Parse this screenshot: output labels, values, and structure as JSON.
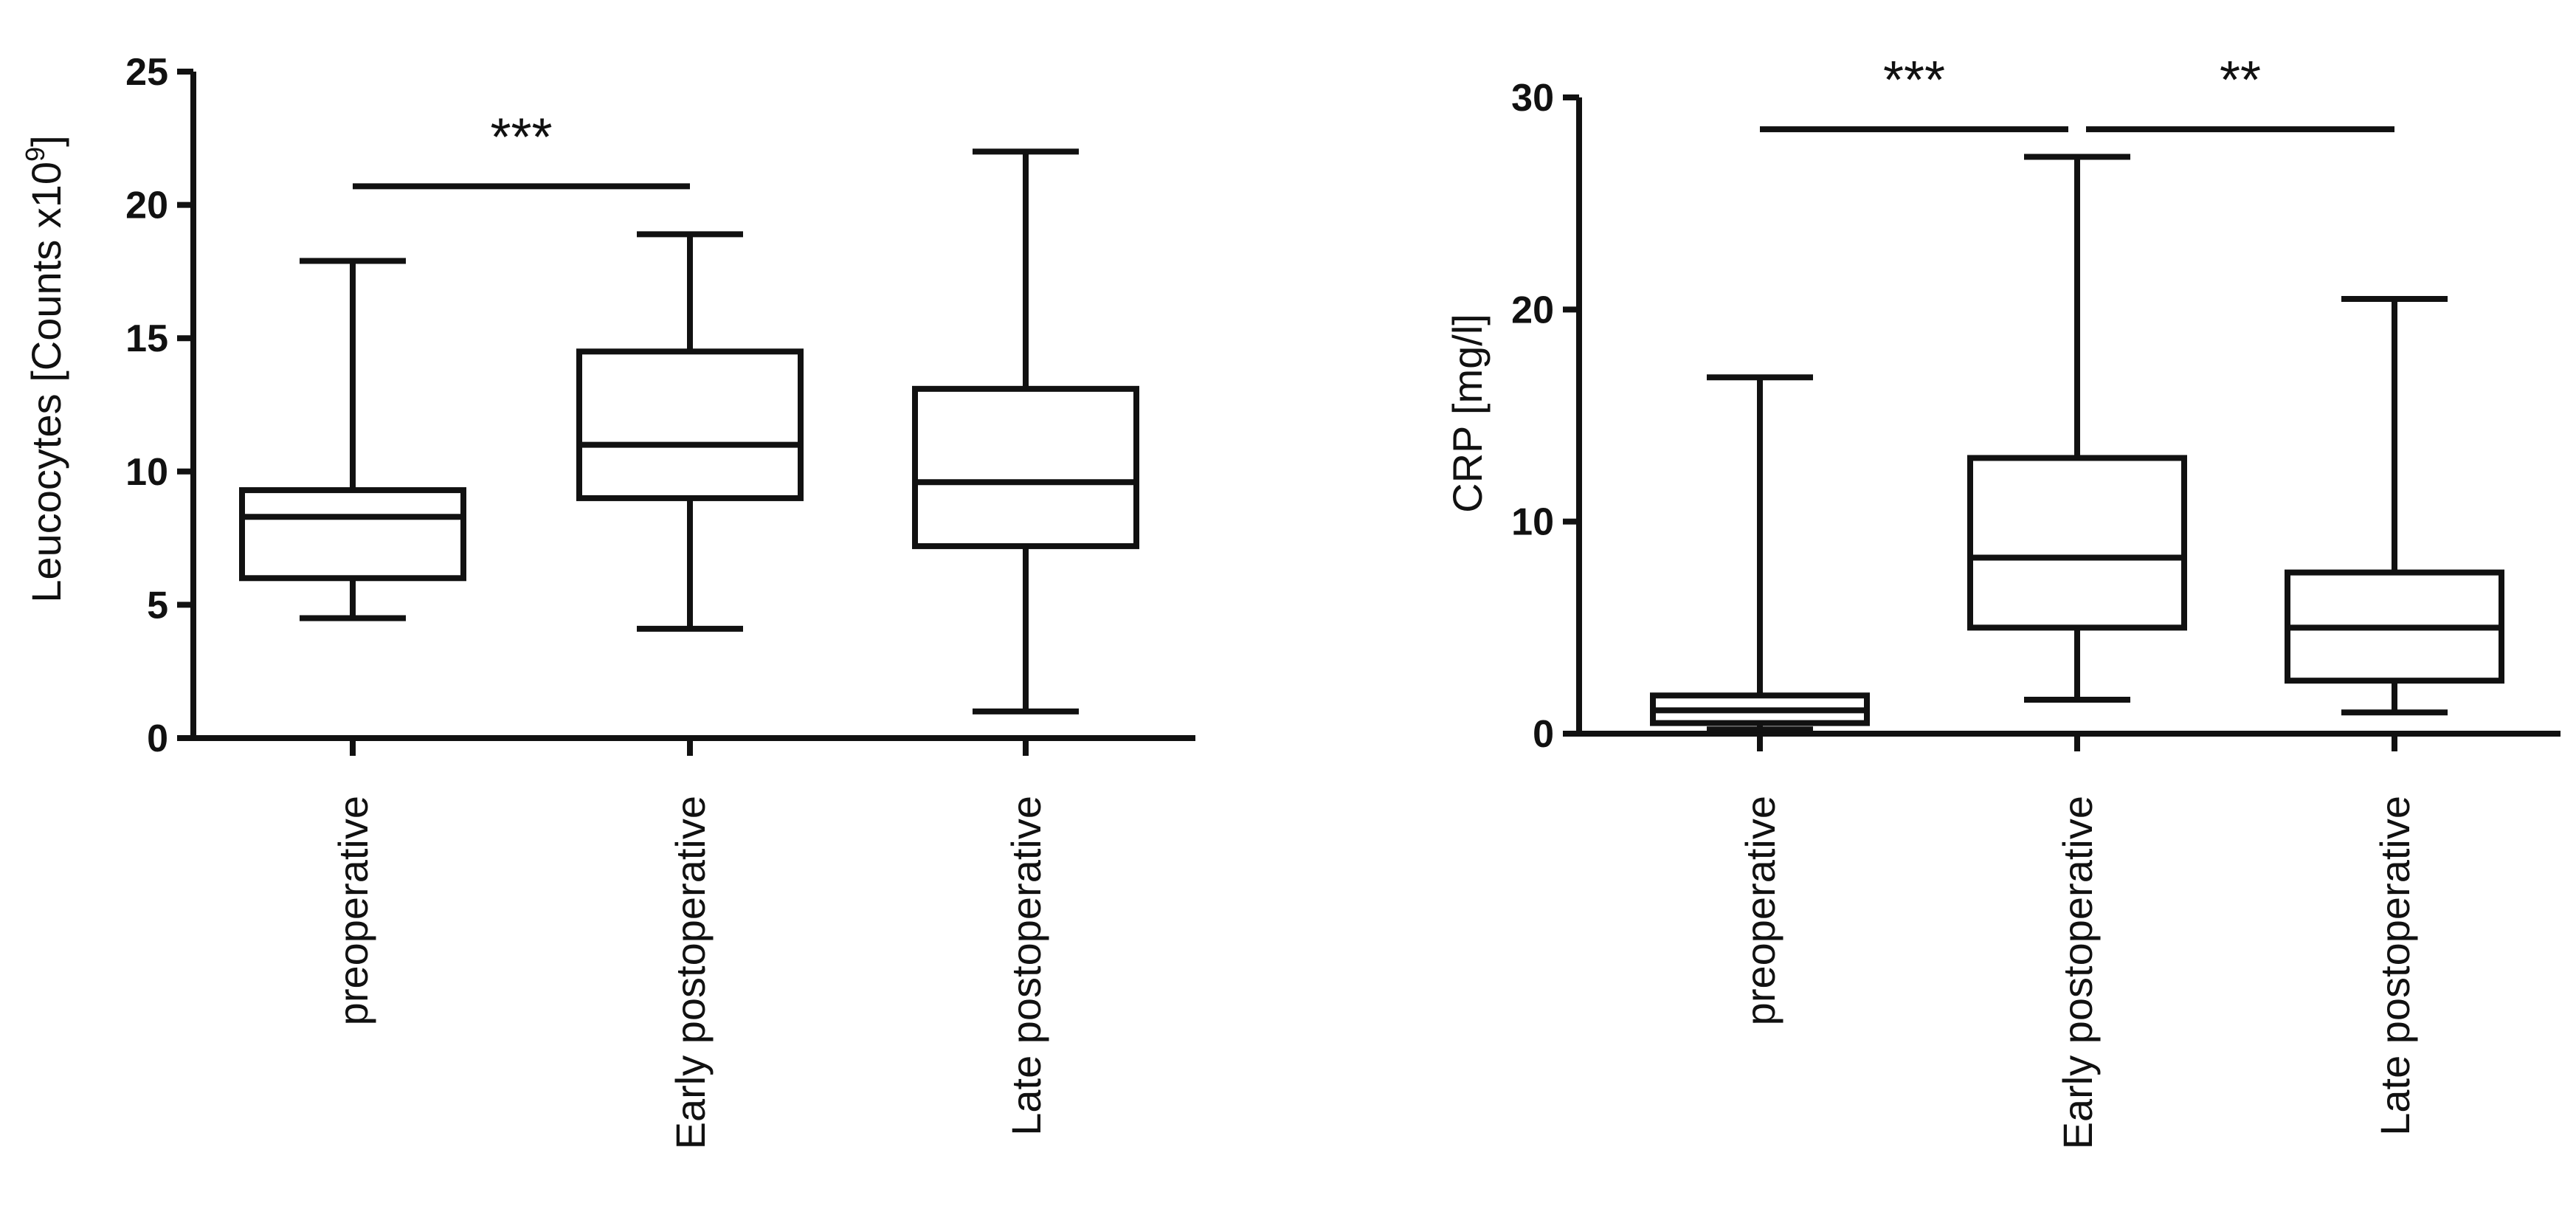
{
  "chart_data": [
    {
      "type": "box",
      "ylabel_main": "Leucocytes  [Counts x10",
      "ylabel_sup": "9",
      "ylabel_end": "]",
      "ylim": [
        0,
        25
      ],
      "yticks": [
        "0",
        "5",
        "10",
        "15",
        "20",
        "25"
      ],
      "categories": [
        "preoperative",
        "Early postoperative",
        "Late postoperative"
      ],
      "boxes": [
        {
          "min": 4.5,
          "q1": 6.0,
          "median": 8.3,
          "q3": 9.3,
          "max": 17.9
        },
        {
          "min": 4.1,
          "q1": 9.0,
          "median": 11.0,
          "q3": 14.5,
          "max": 18.9
        },
        {
          "min": 1.0,
          "q1": 7.2,
          "median": 9.6,
          "q3": 13.1,
          "max": 22.0
        }
      ],
      "significance": [
        {
          "from": 0,
          "to": 1,
          "y": 20.7,
          "label": "***"
        }
      ]
    },
    {
      "type": "box",
      "ylabel": "CRP [mg/l]",
      "ylim": [
        0,
        30
      ],
      "yticks": [
        "0",
        "10",
        "20",
        "30"
      ],
      "categories": [
        "preoperative",
        "Early postoperative",
        "Late postoperative"
      ],
      "boxes": [
        {
          "min": 0.2,
          "q1": 0.5,
          "median": 1.1,
          "q3": 1.8,
          "max": 16.8
        },
        {
          "min": 1.6,
          "q1": 5.0,
          "median": 8.3,
          "q3": 13.0,
          "max": 27.2
        },
        {
          "min": 1.0,
          "q1": 2.5,
          "median": 5.0,
          "q3": 7.6,
          "max": 20.5
        }
      ],
      "significance": [
        {
          "from": 0,
          "to": 1,
          "y": 28.5,
          "label": "***"
        },
        {
          "from": 1,
          "to": 2,
          "y": 28.5,
          "label": "**"
        }
      ]
    }
  ]
}
